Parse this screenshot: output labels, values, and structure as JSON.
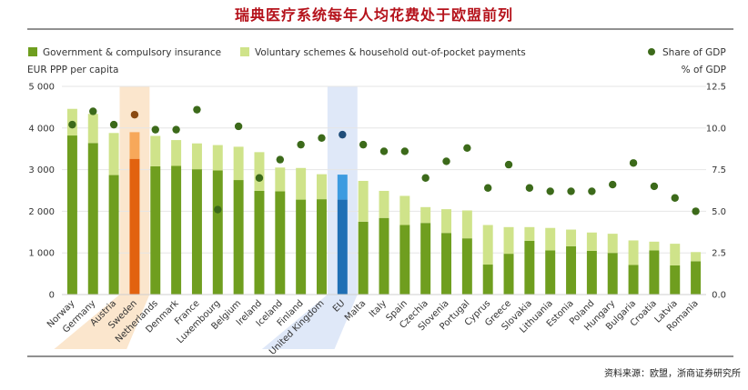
{
  "title": "瑞典医疗系统每年人均花费处于欧盟前列",
  "source": "资料来源：欧盟，浙商证券研究所",
  "colors": {
    "government": "#6f9e1f",
    "voluntary": "#cfe38a",
    "share_dot": "#3c6a1a",
    "sweden_government": "#e2620f",
    "sweden_voluntary": "#f7a85a",
    "sweden_band": "#fbe3c8",
    "sweden_dot": "#8a4a12",
    "eu_government": "#1f6fb5",
    "eu_voluntary": "#3d9be0",
    "eu_band": "#dbe6f7",
    "eu_dot": "#1f4d7a",
    "title": "#b5121b"
  },
  "chart_data": {
    "type": "bar",
    "stacked": true,
    "legend": [
      "Government & compulsory insurance",
      "Voluntary schemes & household out-of-pocket payments",
      "Share of GDP"
    ],
    "legend_position": "top",
    "ylabel_left": "EUR PPP per capita",
    "ylabel_right": "% of GDP",
    "ylim_left": [
      0,
      5000
    ],
    "ylim_right": [
      0,
      12.5
    ],
    "yticks_left": [
      "0",
      "1 000",
      "2 000",
      "3 000",
      "4 000",
      "5 000"
    ],
    "yticks_right": [
      "0.0",
      "2.5",
      "5.0",
      "7.5",
      "10.0",
      "12.5"
    ],
    "highlight": [
      "Sweden",
      "EU"
    ],
    "categories": [
      "Norway",
      "Germany",
      "Austria",
      "Sweden",
      "Netherlands",
      "Denmark",
      "France",
      "Luxembourg",
      "Belgium",
      "Ireland",
      "Iceland",
      "Finland",
      "United Kingdom",
      "EU",
      "Malta",
      "Italy",
      "Spain",
      "Czechia",
      "Slovenia",
      "Portugal",
      "Cyprus",
      "Greece",
      "Slovakia",
      "Lithuania",
      "Estonia",
      "Poland",
      "Hungary",
      "Bulgaria",
      "Croatia",
      "Latvia",
      "Romania"
    ],
    "series": [
      {
        "name": "Government & compulsory insurance",
        "values": [
          3820,
          3640,
          2870,
          3260,
          3080,
          3090,
          3010,
          2980,
          2750,
          2490,
          2480,
          2280,
          2290,
          2280,
          1750,
          1840,
          1670,
          1720,
          1480,
          1350,
          720,
          980,
          1290,
          1060,
          1160,
          1050,
          1000,
          710,
          1060,
          700,
          800
        ]
      },
      {
        "name": "Voluntary schemes & household out-of-pocket payments",
        "values": [
          640,
          700,
          1010,
          640,
          730,
          620,
          620,
          610,
          800,
          930,
          570,
          760,
          600,
          600,
          980,
          650,
          700,
          380,
          570,
          670,
          950,
          640,
          330,
          540,
          400,
          440,
          460,
          590,
          210,
          520,
          220
        ]
      },
      {
        "name": "Share of GDP",
        "values": [
          10.2,
          11.0,
          10.2,
          10.8,
          9.9,
          9.9,
          11.1,
          5.1,
          10.1,
          7.0,
          8.1,
          9.0,
          9.4,
          9.6,
          9.0,
          8.6,
          8.6,
          7.0,
          8.0,
          8.8,
          6.4,
          7.8,
          6.4,
          6.2,
          6.2,
          6.2,
          6.6,
          7.9,
          6.5,
          5.8,
          5.0
        ]
      }
    ]
  }
}
